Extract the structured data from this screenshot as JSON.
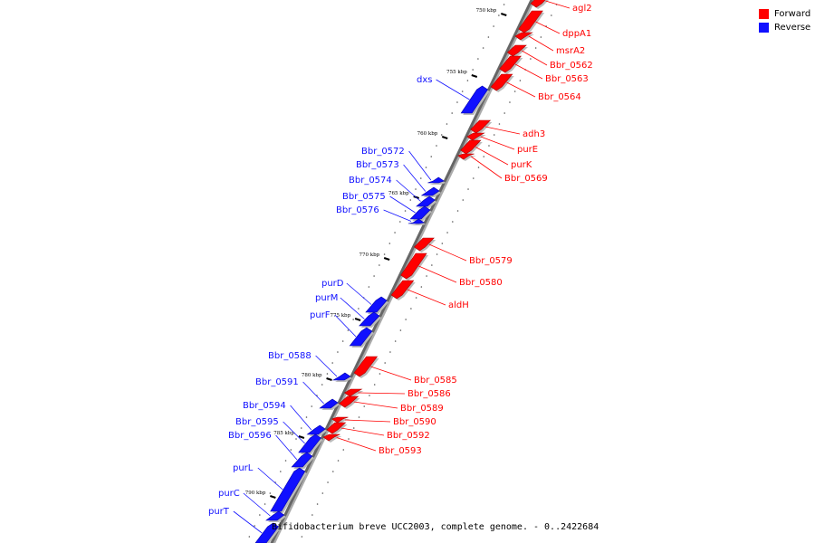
{
  "legend": {
    "forward_label": "Forward",
    "reverse_label": "Reverse",
    "forward_color": "#ff0000",
    "reverse_color": "#1010ff"
  },
  "caption": "Bifidobacterium breve UCC2003, complete genome. - 0..2422684",
  "axis": {
    "ticks": [
      {
        "kbp": 750,
        "label": "750 kbp"
      },
      {
        "kbp": 755,
        "label": "755 kbp"
      },
      {
        "kbp": 760,
        "label": "760 kbp"
      },
      {
        "kbp": 765,
        "label": "765 kbp"
      },
      {
        "kbp": 770,
        "label": "770 kbp"
      },
      {
        "kbp": 775,
        "label": "775 kbp"
      },
      {
        "kbp": 780,
        "label": "780 kbp"
      },
      {
        "kbp": 785,
        "label": "785 kbp"
      },
      {
        "kbp": 790,
        "label": "790 kbp"
      }
    ]
  },
  "genes": [
    {
      "name": "agl2",
      "strand": "forward"
    },
    {
      "name": "dppA1",
      "strand": "forward"
    },
    {
      "name": "msrA2",
      "strand": "forward"
    },
    {
      "name": "Bbr_0562",
      "strand": "forward"
    },
    {
      "name": "Bbr_0563",
      "strand": "forward"
    },
    {
      "name": "Bbr_0564",
      "strand": "forward"
    },
    {
      "name": "dxs",
      "strand": "reverse"
    },
    {
      "name": "adh3",
      "strand": "forward"
    },
    {
      "name": "purE",
      "strand": "forward"
    },
    {
      "name": "purK",
      "strand": "forward"
    },
    {
      "name": "Bbr_0569",
      "strand": "forward"
    },
    {
      "name": "Bbr_0572",
      "strand": "reverse"
    },
    {
      "name": "Bbr_0573",
      "strand": "reverse"
    },
    {
      "name": "Bbr_0574",
      "strand": "reverse"
    },
    {
      "name": "Bbr_0575",
      "strand": "reverse"
    },
    {
      "name": "Bbr_0576",
      "strand": "reverse"
    },
    {
      "name": "Bbr_0579",
      "strand": "forward"
    },
    {
      "name": "Bbr_0580",
      "strand": "forward"
    },
    {
      "name": "aldH",
      "strand": "forward"
    },
    {
      "name": "purD",
      "strand": "reverse"
    },
    {
      "name": "purM",
      "strand": "reverse"
    },
    {
      "name": "purF",
      "strand": "reverse"
    },
    {
      "name": "Bbr_0588",
      "strand": "reverse"
    },
    {
      "name": "Bbr_0585",
      "strand": "forward"
    },
    {
      "name": "Bbr_0591",
      "strand": "reverse"
    },
    {
      "name": "Bbr_0586",
      "strand": "forward"
    },
    {
      "name": "Bbr_0589",
      "strand": "forward"
    },
    {
      "name": "Bbr_0594",
      "strand": "reverse"
    },
    {
      "name": "Bbr_0590",
      "strand": "forward"
    },
    {
      "name": "Bbr_0595",
      "strand": "reverse"
    },
    {
      "name": "Bbr_0592",
      "strand": "forward"
    },
    {
      "name": "Bbr_0596",
      "strand": "reverse"
    },
    {
      "name": "Bbr_0593",
      "strand": "forward"
    },
    {
      "name": "purL",
      "strand": "reverse"
    },
    {
      "name": "purC",
      "strand": "reverse"
    },
    {
      "name": "purT",
      "strand": "reverse"
    }
  ]
}
